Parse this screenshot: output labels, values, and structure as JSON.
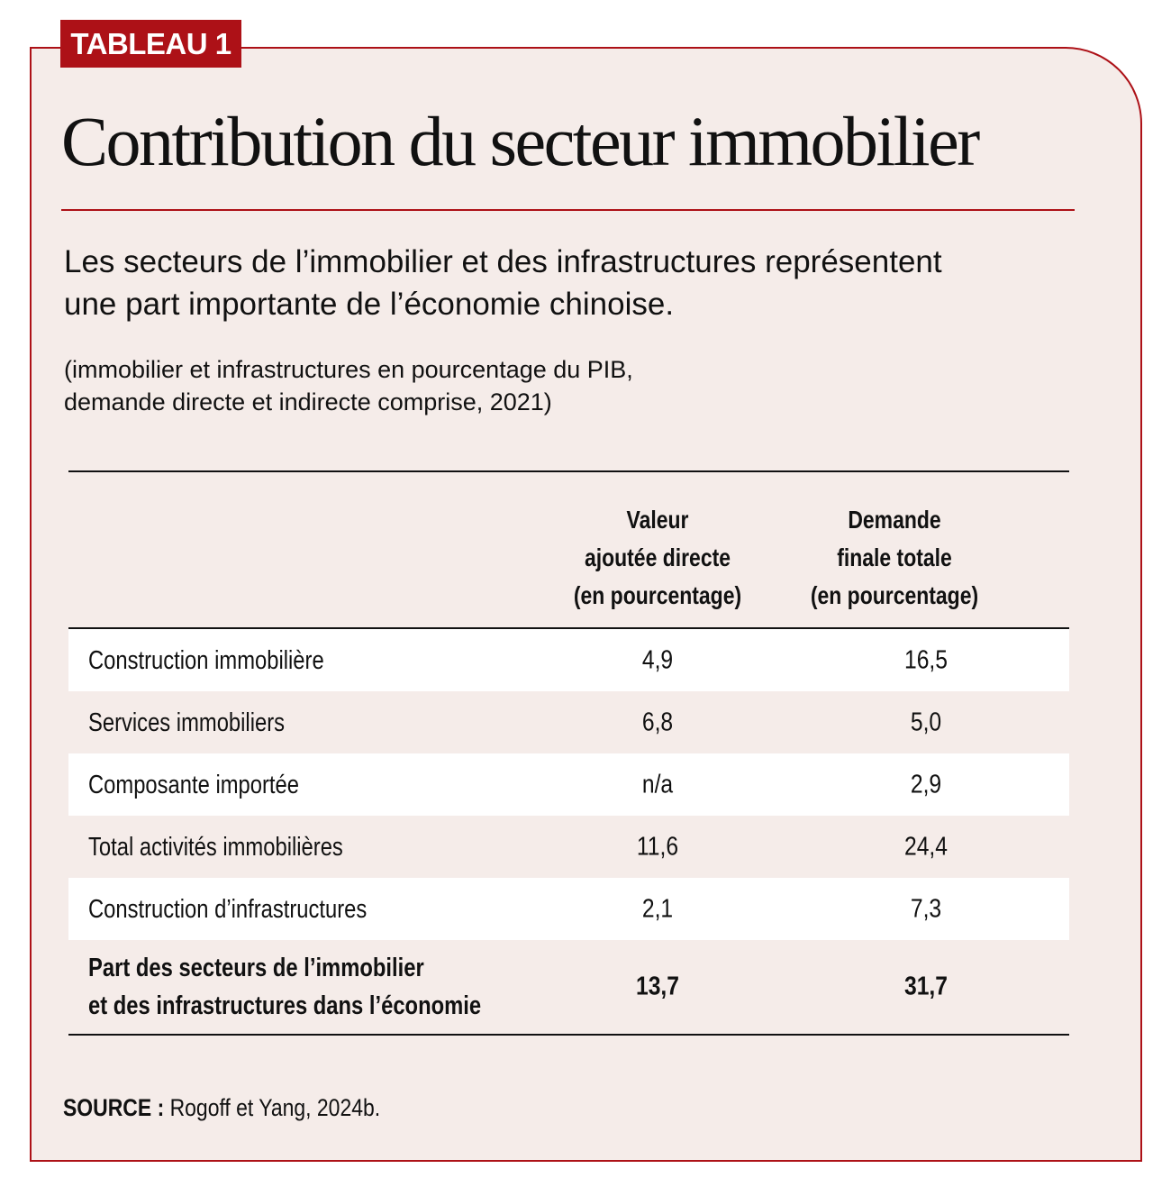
{
  "tag": "TABLEAU 1",
  "title": "Contribution du secteur immobilier",
  "subtitle": "Les secteurs de l’immobilier et des infrastructures représentent\nune part importante de l’économie chinoise.",
  "note": "(immobilier et infrastructures en pourcentage du PIB,\ndemande directe et indirecte comprise, 2021)",
  "source_label": "SOURCE :",
  "source_text": " Rogoff et Yang, 2024b.",
  "colors": {
    "accent": "#ad1117",
    "panel": "#f5ece9"
  },
  "chart_data": {
    "type": "table",
    "columns": [
      "",
      "Valeur\najoutée directe\n(en pourcentage)",
      "Demande\nfinale totale\n(en pourcentage)"
    ],
    "rows": [
      {
        "label": "Construction immobilière",
        "values": [
          "4,9",
          "16,5"
        ]
      },
      {
        "label": "Services immobiliers",
        "values": [
          "6,8",
          "5,0"
        ]
      },
      {
        "label": "Composante importée",
        "values": [
          "n/a",
          "2,9"
        ]
      },
      {
        "label": "Total activités immobilières",
        "values": [
          "11,6",
          "24,4"
        ]
      },
      {
        "label": "Construction d’infrastructures",
        "values": [
          "2,1",
          "7,3"
        ]
      },
      {
        "label": "Part des secteurs de l’immobilier\net des infrastructures dans l’économie",
        "values": [
          "13,7",
          "31,7"
        ],
        "bold": true
      }
    ]
  }
}
